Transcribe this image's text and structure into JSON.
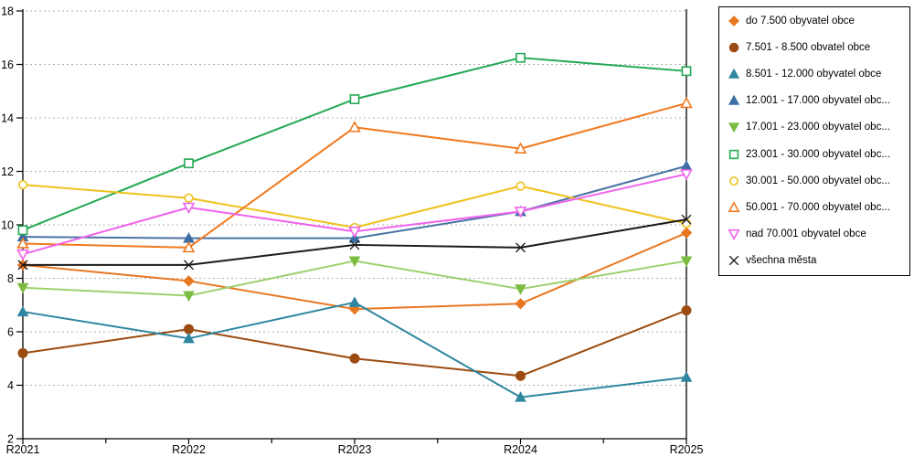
{
  "chart_data": {
    "type": "line",
    "title": "",
    "xlabel": "",
    "ylabel": "",
    "categories": [
      "R2021",
      "R2022",
      "R2023",
      "R2024",
      "R2025"
    ],
    "ylim": [
      2,
      18
    ],
    "y_ticks": [
      2,
      4,
      6,
      8,
      10,
      12,
      14,
      16,
      18
    ],
    "ytick_step": 2,
    "grid": "horizontal dashed",
    "legend_position": "right outside, boxed",
    "series": [
      {
        "label": "do 7.500 obyvatel obce",
        "color": "#e87722",
        "marker": "diamond",
        "marker_style": "filled",
        "values": [
          8.5,
          7.9,
          6.85,
          7.05,
          9.7
        ]
      },
      {
        "label": "7.501 - 8.500 obvatel obce",
        "color": "#9c4c10",
        "marker": "circle",
        "marker_style": "filled",
        "values": [
          5.2,
          6.1,
          5.0,
          4.35,
          6.8
        ]
      },
      {
        "label": "8.501 - 12.000 obyvatel obce",
        "color": "#2e86a0",
        "marker": "triangle-up",
        "marker_style": "filled",
        "values": [
          6.75,
          5.75,
          7.1,
          3.55,
          4.3
        ]
      },
      {
        "label": "12.001 - 17.000 obyvatel obc...",
        "color": "#3a6ea5",
        "line_color": "#4a74a3",
        "marker": "triangle-up",
        "marker_style": "filled",
        "values": [
          9.55,
          9.5,
          9.5,
          10.5,
          12.2
        ]
      },
      {
        "label": "17.001 - 23.000 obyvatel obc...",
        "color": "#7abc41",
        "line_color": "#9ed06e",
        "marker": "triangle-down",
        "marker_style": "filled",
        "values": [
          7.65,
          7.35,
          8.65,
          7.6,
          8.65
        ]
      },
      {
        "label": "23.001 - 30.000 obyvatel obc...",
        "color": "#23a854",
        "marker": "square",
        "marker_style": "open",
        "values": [
          9.8,
          12.3,
          14.7,
          16.25,
          15.75
        ]
      },
      {
        "label": "30.001 - 50.000 obyvatel obc...",
        "color": "#eec21a",
        "marker": "circle",
        "marker_style": "open",
        "values": [
          11.5,
          11.0,
          9.9,
          11.45,
          10.05
        ]
      },
      {
        "label": "50.001 - 70.000 obyvatel obc...",
        "color": "#f0791f",
        "marker": "triangle-up",
        "marker_style": "open",
        "values": [
          9.3,
          9.15,
          13.65,
          12.85,
          14.55
        ]
      },
      {
        "label": "nad 70.001 obyvatel obce",
        "color": "#f163ec",
        "marker": "triangle-down",
        "marker_style": "open",
        "values": [
          8.9,
          10.65,
          9.75,
          10.5,
          11.9
        ]
      },
      {
        "label": "všechna města",
        "color": "#1a1a1a",
        "marker": "x",
        "marker_style": "line",
        "values": [
          8.5,
          8.5,
          9.25,
          9.15,
          10.2
        ]
      }
    ]
  }
}
